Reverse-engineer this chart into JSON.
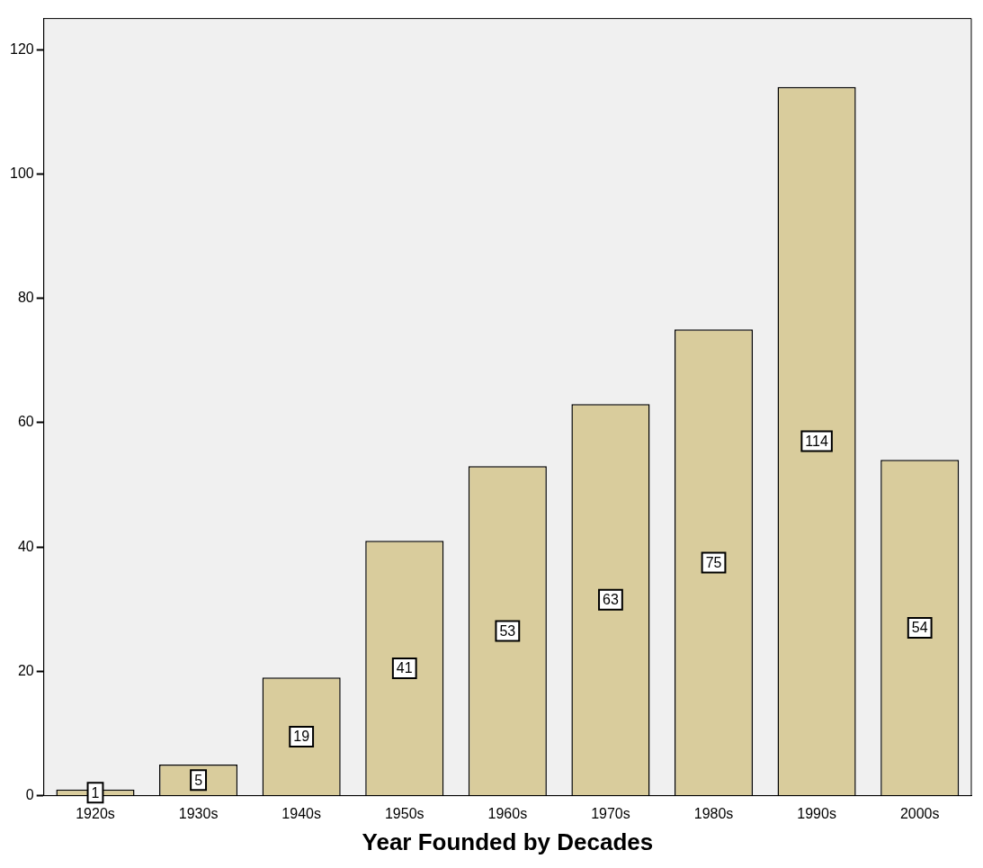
{
  "chart_data": {
    "type": "bar",
    "xlabel": "Year Founded by Decades",
    "categories": [
      "1920s",
      "1930s",
      "1940s",
      "1950s",
      "1960s",
      "1970s",
      "1980s",
      "1990s",
      "2000s"
    ],
    "values": [
      1,
      5,
      19,
      41,
      53,
      63,
      75,
      114,
      54
    ],
    "color": "#d9cc9c",
    "ylim": [
      0,
      125
    ],
    "yticks": [
      0,
      20,
      40,
      60,
      80,
      100,
      120
    ],
    "grid": false,
    "legend": false,
    "data_labels": true
  }
}
